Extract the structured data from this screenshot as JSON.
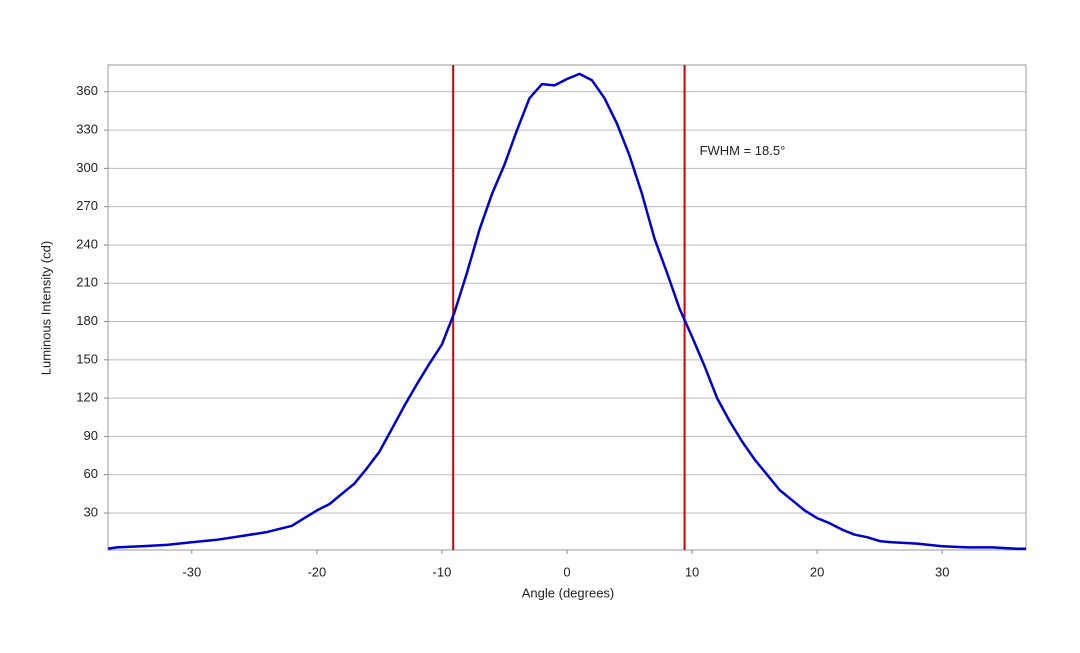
{
  "chart_data": {
    "type": "line",
    "x_label": "Angle (degrees)",
    "y_label": "Luminous Intensity (cd)",
    "x": [
      -36.7,
      -36,
      -34,
      -32,
      -30,
      -28,
      -26,
      -24,
      -22,
      -21,
      -20,
      -19,
      -18,
      -17,
      -16,
      -15,
      -14,
      -13,
      -12,
      -11,
      -10,
      -9,
      -8,
      -7,
      -6,
      -5,
      -4,
      -3,
      -2,
      -1,
      0,
      1,
      2,
      3,
      4,
      5,
      6,
      7,
      8,
      9,
      10,
      11,
      12,
      13,
      14,
      15,
      16,
      17,
      18,
      19,
      20,
      21,
      22,
      23,
      24,
      25,
      26,
      28,
      30,
      32,
      34,
      36,
      36.7
    ],
    "series": [
      {
        "color": "#0000cc",
        "values": [
          2,
          3,
          4,
          5,
          7,
          9,
          12,
          15,
          20,
          26,
          32,
          37,
          45,
          53,
          65,
          78,
          96,
          114,
          131,
          147,
          162,
          187,
          218,
          252,
          280,
          303,
          330,
          355,
          366,
          365,
          370,
          374,
          369,
          355,
          335,
          310,
          280,
          245,
          218,
          190,
          168,
          145,
          120,
          102,
          86,
          72,
          60,
          48,
          40,
          32,
          26,
          22,
          17,
          13,
          11,
          8,
          7,
          6,
          4,
          3,
          3,
          2,
          2
        ]
      }
    ],
    "vlines": [
      -9.1,
      9.4
    ],
    "vline_color": "#cc0000",
    "annotation": {
      "text": "FWHM = 18.5°",
      "x": 10.6,
      "y": 313
    },
    "xlim": [
      -36.7,
      36.7
    ],
    "ylim": [
      1,
      381
    ],
    "xticks": [
      -30,
      -20,
      -10,
      0,
      10,
      20,
      30
    ],
    "yticks": [
      30,
      60,
      90,
      120,
      150,
      180,
      210,
      240,
      270,
      300,
      330,
      360
    ],
    "grid": true
  }
}
